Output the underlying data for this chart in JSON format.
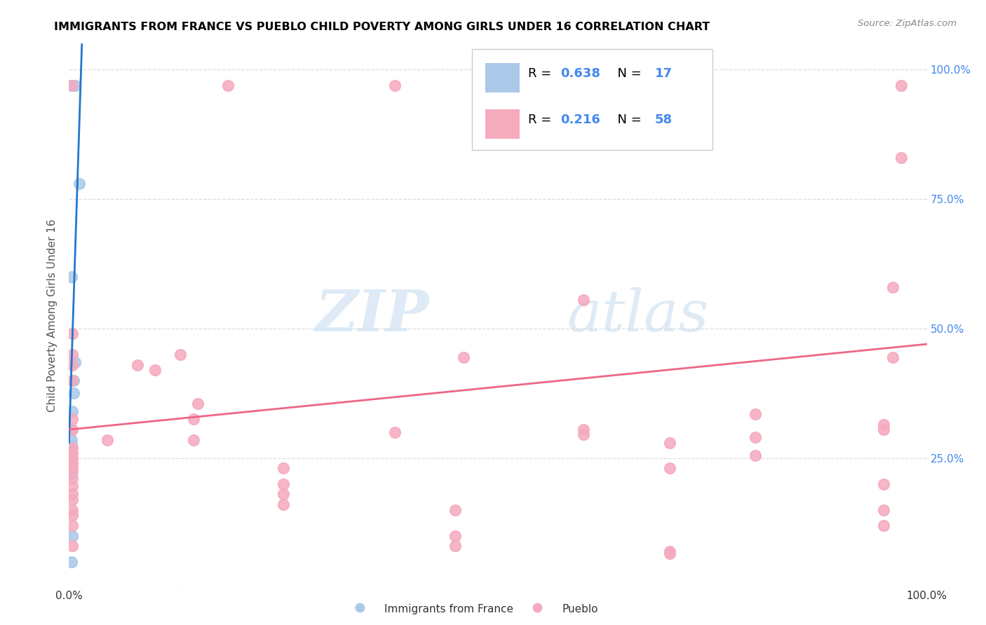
{
  "title": "IMMIGRANTS FROM FRANCE VS PUEBLO CHILD POVERTY AMONG GIRLS UNDER 16 CORRELATION CHART",
  "source": "Source: ZipAtlas.com",
  "ylabel": "Child Poverty Among Girls Under 16",
  "legend_label1": "Immigrants from France",
  "legend_label2": "Pueblo",
  "r1": "0.638",
  "n1": "17",
  "r2": "0.216",
  "n2": "58",
  "blue_color": "#aac8e8",
  "pink_color": "#f5aabe",
  "blue_line_color": "#2277cc",
  "pink_line_color": "#ee6688",
  "blue_scatter": [
    [
      0.007,
      0.97
    ],
    [
      0.003,
      0.97
    ],
    [
      0.012,
      0.78
    ],
    [
      0.003,
      0.6
    ],
    [
      0.007,
      0.435
    ],
    [
      0.005,
      0.4
    ],
    [
      0.005,
      0.375
    ],
    [
      0.004,
      0.34
    ],
    [
      0.003,
      0.305
    ],
    [
      0.003,
      0.285
    ],
    [
      0.003,
      0.275
    ],
    [
      0.003,
      0.265
    ],
    [
      0.003,
      0.26
    ],
    [
      0.003,
      0.245
    ],
    [
      0.003,
      0.22
    ],
    [
      0.004,
      0.1
    ],
    [
      0.003,
      0.05
    ]
  ],
  "pink_scatter": [
    [
      0.003,
      0.97
    ],
    [
      0.185,
      0.97
    ],
    [
      0.97,
      0.97
    ],
    [
      0.38,
      0.97
    ],
    [
      0.97,
      0.83
    ],
    [
      0.6,
      0.555
    ],
    [
      0.96,
      0.58
    ],
    [
      0.46,
      0.445
    ],
    [
      0.96,
      0.445
    ],
    [
      0.004,
      0.49
    ],
    [
      0.004,
      0.45
    ],
    [
      0.004,
      0.43
    ],
    [
      0.004,
      0.4
    ],
    [
      0.08,
      0.43
    ],
    [
      0.13,
      0.45
    ],
    [
      0.1,
      0.42
    ],
    [
      0.15,
      0.355
    ],
    [
      0.145,
      0.325
    ],
    [
      0.145,
      0.285
    ],
    [
      0.045,
      0.285
    ],
    [
      0.6,
      0.305
    ],
    [
      0.6,
      0.295
    ],
    [
      0.7,
      0.28
    ],
    [
      0.38,
      0.3
    ],
    [
      0.8,
      0.335
    ],
    [
      0.8,
      0.29
    ],
    [
      0.8,
      0.255
    ],
    [
      0.95,
      0.315
    ],
    [
      0.95,
      0.305
    ],
    [
      0.95,
      0.2
    ],
    [
      0.004,
      0.325
    ],
    [
      0.004,
      0.305
    ],
    [
      0.004,
      0.27
    ],
    [
      0.004,
      0.26
    ],
    [
      0.004,
      0.25
    ],
    [
      0.004,
      0.24
    ],
    [
      0.004,
      0.235
    ],
    [
      0.004,
      0.225
    ],
    [
      0.004,
      0.21
    ],
    [
      0.004,
      0.195
    ],
    [
      0.004,
      0.18
    ],
    [
      0.004,
      0.17
    ],
    [
      0.004,
      0.15
    ],
    [
      0.004,
      0.14
    ],
    [
      0.004,
      0.12
    ],
    [
      0.004,
      0.08
    ],
    [
      0.25,
      0.23
    ],
    [
      0.25,
      0.2
    ],
    [
      0.25,
      0.18
    ],
    [
      0.25,
      0.16
    ],
    [
      0.45,
      0.15
    ],
    [
      0.45,
      0.1
    ],
    [
      0.45,
      0.08
    ],
    [
      0.7,
      0.23
    ],
    [
      0.7,
      0.07
    ],
    [
      0.7,
      0.065
    ],
    [
      0.95,
      0.15
    ],
    [
      0.95,
      0.12
    ]
  ],
  "blue_line_x0": 0.0,
  "blue_line_x1": 0.015,
  "blue_line_y0": 0.28,
  "blue_line_y1": 1.05,
  "pink_line_x0": 0.0,
  "pink_line_x1": 1.0,
  "pink_line_y0": 0.305,
  "pink_line_y1": 0.47,
  "xmin": 0.0,
  "xmax": 1.0,
  "ymin": 0.0,
  "ymax": 1.05,
  "watermark_zip": "ZIP",
  "watermark_atlas": "atlas",
  "grid_color": "#dddddd",
  "ytick_color": "#4488ee"
}
